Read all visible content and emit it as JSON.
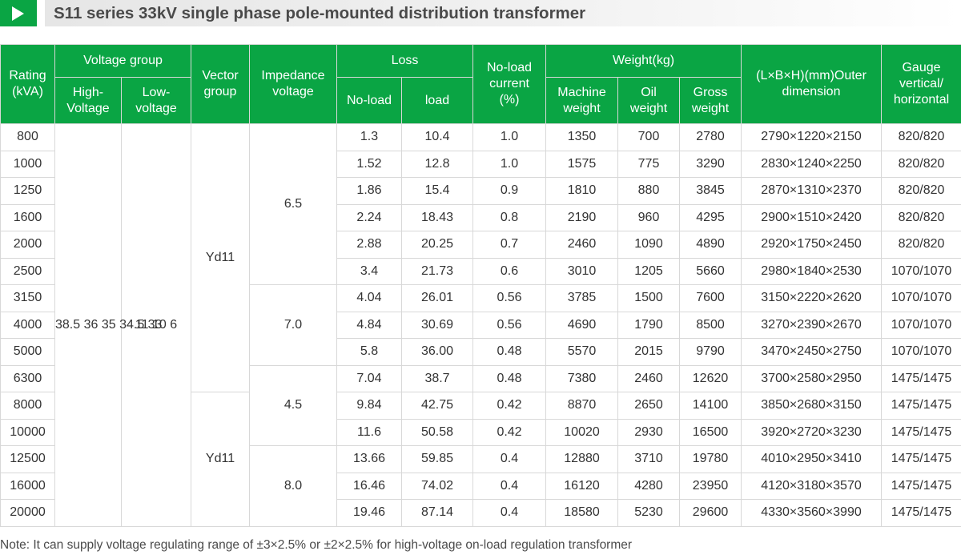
{
  "title": "S11 series 33kV single phase pole-mounted distribution transformer",
  "colors": {
    "accent": "#0aa544",
    "header_text": "#ffffff",
    "grid": "#d8d8d8"
  },
  "headers": {
    "rating": "Rating\n(kVA)",
    "voltage_group": "Voltage group",
    "high_voltage": "High-\nVoltage",
    "low_voltage": "Low-\nvoltage",
    "vector_group": "Vector\ngroup",
    "impedance_voltage": "Impedance\nvoltage",
    "loss": "Loss",
    "no_load": "No-load",
    "load": "load",
    "no_load_current": "No-load\ncurrent\n(%)",
    "weight": "Weight(kg)",
    "machine_weight": "Machine\nweight",
    "oil_weight": "Oil\nweight",
    "gross_weight": "Gross\nweight",
    "outer_dimension": "(L×B×H)(mm)Outer\ndimension",
    "gauge": "Gauge\nvertical/\nhorizontal"
  },
  "merged": {
    "high_voltage": "38.5\n36\n35\n34.5\n33",
    "low_voltage": "11\n10\n6",
    "vector_groups": [
      "Yd11",
      "Yd11"
    ],
    "impedance": [
      "6.5",
      "7.0",
      "4.5",
      "8.0"
    ]
  },
  "rows": [
    {
      "rating": "800",
      "no_load": "1.3",
      "load": "10.4",
      "current": "1.0",
      "machine": "1350",
      "oil": "700",
      "gross": "2780",
      "dimension": "2790×1220×2150",
      "gauge": "820/820"
    },
    {
      "rating": "1000",
      "no_load": "1.52",
      "load": "12.8",
      "current": "1.0",
      "machine": "1575",
      "oil": "775",
      "gross": "3290",
      "dimension": "2830×1240×2250",
      "gauge": "820/820"
    },
    {
      "rating": "1250",
      "no_load": "1.86",
      "load": "15.4",
      "current": "0.9",
      "machine": "1810",
      "oil": "880",
      "gross": "3845",
      "dimension": "2870×1310×2370",
      "gauge": "820/820"
    },
    {
      "rating": "1600",
      "no_load": "2.24",
      "load": "18.43",
      "current": "0.8",
      "machine": "2190",
      "oil": "960",
      "gross": "4295",
      "dimension": "2900×1510×2420",
      "gauge": "820/820"
    },
    {
      "rating": "2000",
      "no_load": "2.88",
      "load": "20.25",
      "current": "0.7",
      "machine": "2460",
      "oil": "1090",
      "gross": "4890",
      "dimension": "2920×1750×2450",
      "gauge": "820/820"
    },
    {
      "rating": "2500",
      "no_load": "3.4",
      "load": "21.73",
      "current": "0.6",
      "machine": "3010",
      "oil": "1205",
      "gross": "5660",
      "dimension": "2980×1840×2530",
      "gauge": "1070/1070"
    },
    {
      "rating": "3150",
      "no_load": "4.04",
      "load": "26.01",
      "current": "0.56",
      "machine": "3785",
      "oil": "1500",
      "gross": "7600",
      "dimension": "3150×2220×2620",
      "gauge": "1070/1070"
    },
    {
      "rating": "4000",
      "no_load": "4.84",
      "load": "30.69",
      "current": "0.56",
      "machine": "4690",
      "oil": "1790",
      "gross": "8500",
      "dimension": "3270×2390×2670",
      "gauge": "1070/1070"
    },
    {
      "rating": "5000",
      "no_load": "5.8",
      "load": "36.00",
      "current": "0.48",
      "machine": "5570",
      "oil": "2015",
      "gross": "9790",
      "dimension": "3470×2450×2750",
      "gauge": "1070/1070"
    },
    {
      "rating": "6300",
      "no_load": "7.04",
      "load": "38.7",
      "current": "0.48",
      "machine": "7380",
      "oil": "2460",
      "gross": "12620",
      "dimension": "3700×2580×2950",
      "gauge": "1475/1475"
    },
    {
      "rating": "8000",
      "no_load": "9.84",
      "load": "42.75",
      "current": "0.42",
      "machine": "8870",
      "oil": "2650",
      "gross": "14100",
      "dimension": "3850×2680×3150",
      "gauge": "1475/1475"
    },
    {
      "rating": "10000",
      "no_load": "11.6",
      "load": "50.58",
      "current": "0.42",
      "machine": "10020",
      "oil": "2930",
      "gross": "16500",
      "dimension": "3920×2720×3230",
      "gauge": "1475/1475"
    },
    {
      "rating": "12500",
      "no_load": "13.66",
      "load": "59.85",
      "current": "0.4",
      "machine": "12880",
      "oil": "3710",
      "gross": "19780",
      "dimension": "4010×2950×3410",
      "gauge": "1475/1475"
    },
    {
      "rating": "16000",
      "no_load": "16.46",
      "load": "74.02",
      "current": "0.4",
      "machine": "16120",
      "oil": "4280",
      "gross": "23950",
      "dimension": "4120×3180×3570",
      "gauge": "1475/1475"
    },
    {
      "rating": "20000",
      "no_load": "19.46",
      "load": "87.14",
      "current": "0.4",
      "machine": "18580",
      "oil": "5230",
      "gross": "29600",
      "dimension": "4330×3560×3990",
      "gauge": "1475/1475"
    }
  ],
  "note": "Note: It can supply voltage regulating range of ±3×2.5% or ±2×2.5% for high-voltage  on-load regulation transformer"
}
